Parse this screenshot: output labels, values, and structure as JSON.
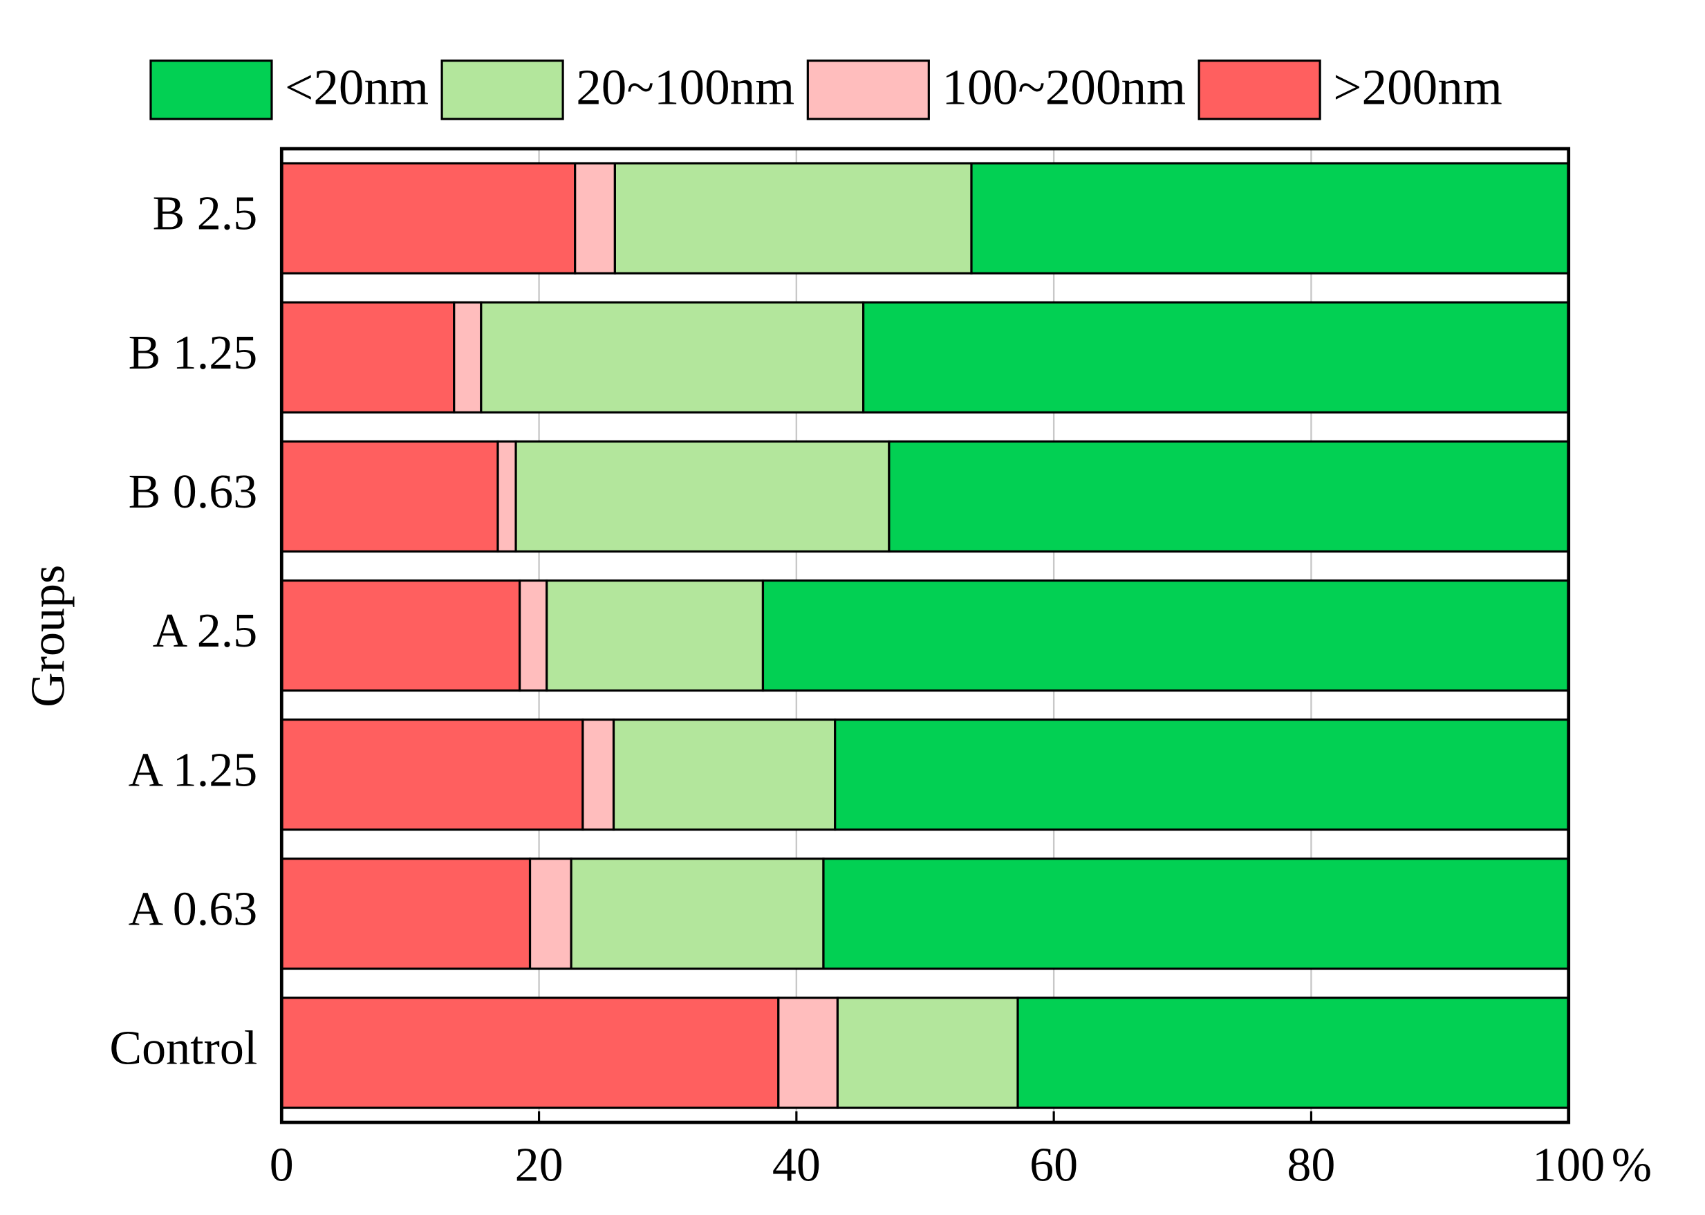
{
  "chart_data": {
    "type": "stacked-bar-horizontal",
    "categories": [
      "B 2.5",
      "B 1.25",
      "B 0.63",
      "A 2.5",
      "A 1.25",
      "A 0.63",
      "Control"
    ],
    "series": [
      {
        "name": "<20nm",
        "color": "#02d053",
        "values": [
          46.4,
          54.8,
          52.8,
          62.6,
          57.0,
          57.9,
          42.8
        ]
      },
      {
        "name": "20~100nm",
        "color": "#b3e69c",
        "values": [
          27.7,
          29.7,
          29.0,
          16.8,
          17.2,
          19.6,
          14.0
        ]
      },
      {
        "name": "100~200nm",
        "color": "#ffbdbd",
        "values": [
          3.1,
          2.1,
          1.4,
          2.1,
          2.4,
          3.2,
          4.6
        ]
      },
      {
        "name": ">200nm",
        "color": "#ff5f5f",
        "values": [
          22.8,
          13.4,
          16.8,
          18.5,
          23.4,
          19.3,
          38.6
        ]
      }
    ],
    "ylabel": "Groups",
    "xlabel": "%",
    "xlim": [
      0,
      100
    ],
    "xticks": [
      0,
      20,
      40,
      60,
      80,
      100
    ],
    "grid": true
  }
}
